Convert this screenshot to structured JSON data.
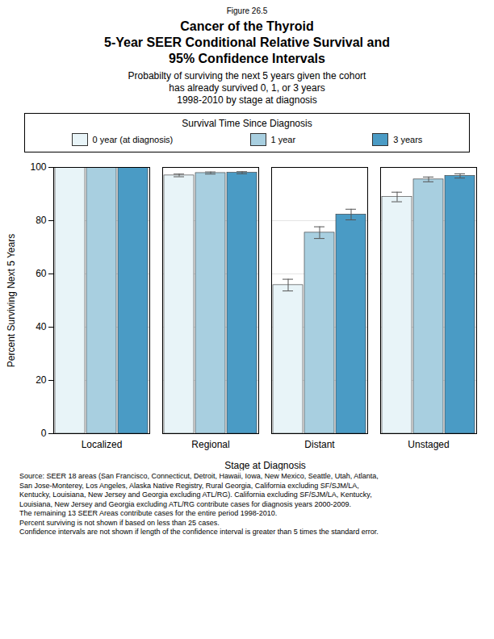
{
  "chart_data": {
    "type": "bar",
    "figure_label": "Figure 26.5",
    "title": [
      "Cancer of the Thyroid",
      "5-Year SEER Conditional Relative Survival and",
      "95% Confidence Intervals"
    ],
    "subtitle": [
      "Probabilty of surviving the next 5 years given the cohort",
      "has already survived 0, 1, or 3 years",
      "1998-2010 by stage at diagnosis"
    ],
    "legend_title": "Survival Time Since Diagnosis",
    "legend": "top",
    "categories": [
      "Localized",
      "Regional",
      "Distant",
      "Unstaged"
    ],
    "series": [
      {
        "name": "0 year (at diagnosis)",
        "color": "#e8f4f8",
        "values": [
          99.9,
          97.0,
          55.8,
          88.9
        ],
        "errors": [
          null,
          0.5,
          2.2,
          1.8
        ]
      },
      {
        "name": "1 year",
        "color": "#a8cfe0",
        "values": [
          99.9,
          97.9,
          75.5,
          95.5
        ],
        "errors": [
          null,
          0.4,
          2.2,
          0.9
        ]
      },
      {
        "name": "3 years",
        "color": "#4a9bc5",
        "values": [
          99.9,
          98.0,
          82.3,
          96.8
        ],
        "errors": [
          null,
          0.4,
          2.0,
          0.8
        ]
      }
    ],
    "xlabel": "Stage at Diagnosis",
    "ylabel": "Percent Surviving Next 5 Years",
    "ylim": [
      0,
      100
    ],
    "yticks": [
      0,
      20,
      40,
      60,
      80,
      100
    ],
    "grid": true,
    "footnote": [
      "Source:  SEER 18 areas (San Francisco, Connecticut, Detroit, Hawaii, Iowa, New Mexico, Seattle, Utah, Atlanta,",
      "San Jose-Monterey, Los Angeles, Alaska Native Registry, Rural Georgia, California excluding SF/SJM/LA,",
      "Kentucky, Louisiana, New Jersey and Georgia excluding ATL/RG). California excluding SF/SJM/LA, Kentucky,",
      "Louisiana, New Jersey and Georgia excluding ATL/RG contribute cases for diagnosis years 2000-2009.",
      "The remaining 13 SEER Areas contribute cases for the entire period 1998-2010.",
      "Percent surviving is not shown if based on less than 25 cases.",
      "Confidence intervals are not shown if length of the confidence interval is greater than 5 times the standard error."
    ]
  }
}
